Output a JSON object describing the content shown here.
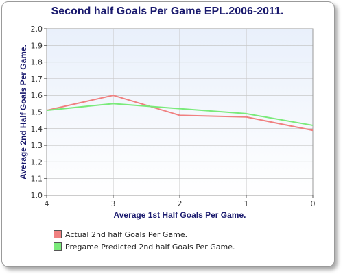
{
  "chart_data": {
    "type": "line",
    "title": "Second half Goals Per Game EPL.2006-2011.",
    "xlabel": "Average 1st Half Goals Per Game.",
    "ylabel": "Average 2nd Half Goals Per Game.",
    "categories": [
      "4",
      "3",
      "2",
      "1",
      "0"
    ],
    "ylim": [
      1.0,
      2.0
    ],
    "yticks": [
      "1.0",
      "1.1",
      "1.2",
      "1.3",
      "1.4",
      "1.5",
      "1.6",
      "1.7",
      "1.8",
      "1.9",
      "2.0"
    ],
    "grid": true,
    "legend_position": "bottom-left",
    "series": [
      {
        "name": "Actual 2nd half Goals Per Game.",
        "color": "#f08080",
        "values": [
          1.51,
          1.6,
          1.48,
          1.47,
          1.39
        ]
      },
      {
        "name": "Pregame Predicted 2nd half Goals Per Game.",
        "color": "#7aea7a",
        "values": [
          1.51,
          1.55,
          1.52,
          1.49,
          1.42
        ]
      }
    ]
  }
}
